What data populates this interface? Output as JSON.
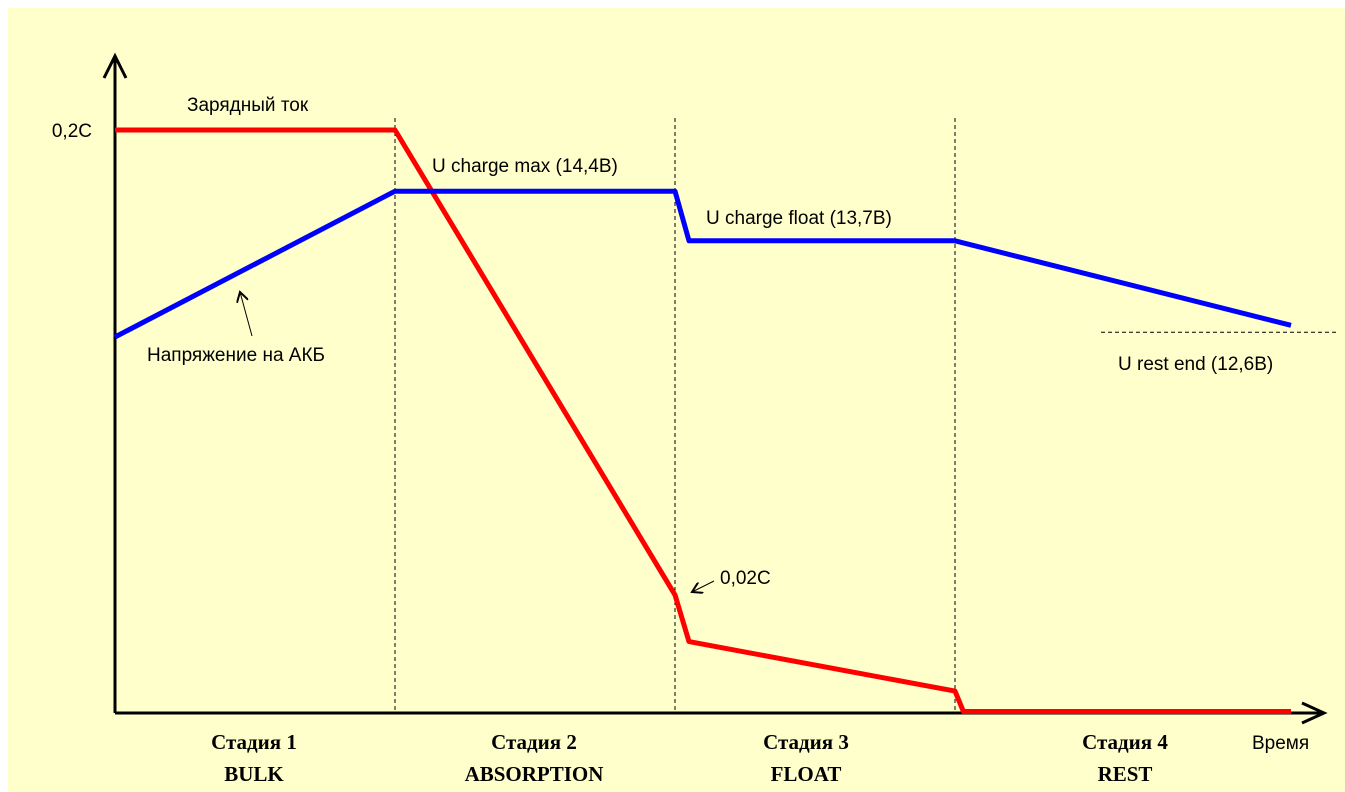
{
  "chart_data": {
    "type": "line",
    "title": "",
    "xlabel": "Время",
    "ylabel": "",
    "ylim": [
      0,
      0.2
    ],
    "grid": false,
    "stage_boundaries": [
      1,
      2,
      3
    ],
    "stages": [
      {
        "number_label": "Стадия 1",
        "name": "BULK"
      },
      {
        "number_label": "Стадия 2",
        "name": "ABSORPTION"
      },
      {
        "number_label": "Стадия 3",
        "name": "FLOAT"
      },
      {
        "number_label": "Стадия 4",
        "name": "REST"
      }
    ],
    "y_tick_labels": [
      {
        "value": 0.2,
        "label": "0,2C"
      }
    ],
    "series": [
      {
        "name": "Зарядный ток",
        "color": "#ff0000",
        "x": [
          0,
          1,
          2,
          2.05,
          3,
          3.03,
          4.2
        ],
        "y": [
          0.2,
          0.2,
          0.0405,
          0.0245,
          0.0075,
          0.0005,
          0.0005
        ]
      },
      {
        "name": "Напряжение на АКБ",
        "color": "#0000ff",
        "x": [
          0,
          1,
          2,
          2.05,
          3,
          4.2
        ],
        "y": [
          0.129,
          0.179,
          0.179,
          0.162,
          0.162,
          0.133
        ]
      }
    ],
    "reference_lines": [
      {
        "label": "U rest end (12,6В)",
        "y": 0.133
      }
    ],
    "annotations": [
      {
        "text": "U charge max (14,4В)"
      },
      {
        "text": "U charge float (13,7В)"
      },
      {
        "text": "0,02C"
      }
    ]
  }
}
